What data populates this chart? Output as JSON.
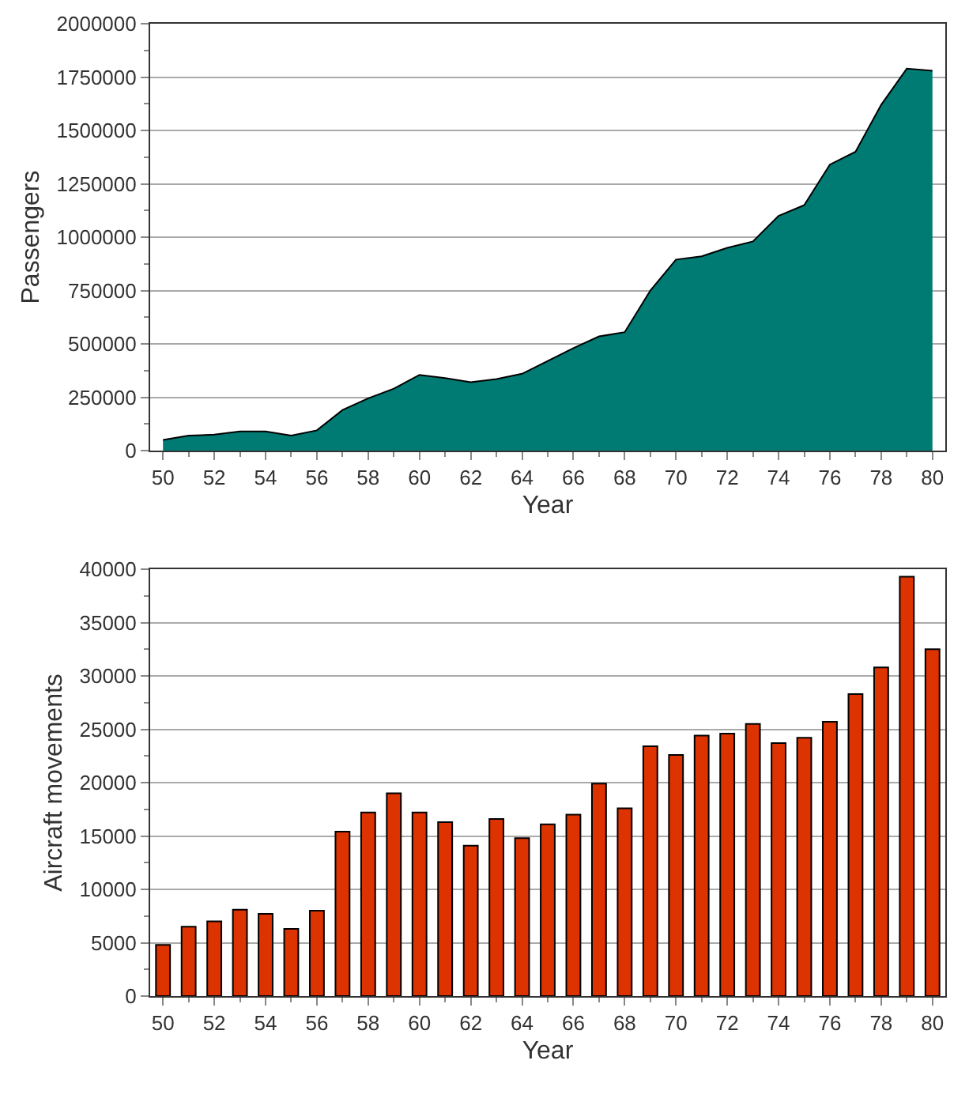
{
  "chart_data": [
    {
      "type": "area",
      "xlabel": "Year",
      "ylabel": "Passengers",
      "x": [
        50,
        51,
        52,
        53,
        54,
        55,
        56,
        57,
        58,
        59,
        60,
        61,
        62,
        63,
        64,
        65,
        66,
        67,
        68,
        69,
        70,
        71,
        72,
        73,
        74,
        75,
        76,
        77,
        78,
        79,
        80
      ],
      "series": [
        {
          "color": "#007b74",
          "values": [
            50000,
            70000,
            75000,
            90000,
            90000,
            70000,
            95000,
            190000,
            245000,
            290000,
            355000,
            340000,
            320000,
            335000,
            360000,
            420000,
            480000,
            535000,
            555000,
            750000,
            895000,
            910000,
            950000,
            980000,
            1100000,
            1150000,
            1340000,
            1400000,
            1620000,
            1790000,
            1780000
          ]
        }
      ],
      "xlim": [
        49.5,
        80.5
      ],
      "xticks": [
        50,
        {
          "value": 51,
          "label": null
        },
        52,
        {
          "value": 53,
          "label": null
        },
        54,
        {
          "value": 55,
          "label": null
        },
        56,
        {
          "value": 57,
          "label": null
        },
        58,
        {
          "value": 59,
          "label": null
        },
        60,
        {
          "value": 61,
          "label": null
        },
        62,
        {
          "value": 63,
          "label": null
        },
        64,
        {
          "value": 65,
          "label": null
        },
        66,
        {
          "value": 67,
          "label": null
        },
        68,
        {
          "value": 69,
          "label": null
        },
        70,
        {
          "value": 71,
          "label": null
        },
        72,
        {
          "value": 73,
          "label": null
        },
        74,
        {
          "value": 75,
          "label": null
        },
        76,
        {
          "value": 77,
          "label": null
        },
        78,
        {
          "value": 79,
          "label": null
        },
        80
      ],
      "ylim": [
        0,
        2000000
      ],
      "yticks": [
        0,
        {
          "value": 125000,
          "label": null
        },
        250000,
        {
          "value": 375000,
          "label": null
        },
        500000,
        {
          "value": 625000,
          "label": null
        },
        750000,
        {
          "value": 875000,
          "label": null
        },
        1000000,
        {
          "value": 1125000,
          "label": null
        },
        1250000,
        {
          "value": 1375000,
          "label": null
        },
        1500000,
        {
          "value": 1625000,
          "label": null
        },
        1750000,
        {
          "value": 1875000,
          "label": null
        },
        2000000
      ],
      "grid": "y"
    },
    {
      "type": "bar",
      "xlabel": "Year",
      "ylabel": "Aircraft movements",
      "x": [
        50,
        51,
        52,
        53,
        54,
        55,
        56,
        57,
        58,
        59,
        60,
        61,
        62,
        63,
        64,
        65,
        66,
        67,
        68,
        69,
        70,
        71,
        72,
        73,
        74,
        75,
        76,
        77,
        78,
        79,
        80
      ],
      "series": [
        {
          "color": "#dd3300",
          "values": [
            4800,
            6500,
            7000,
            8100,
            7700,
            6300,
            8000,
            15400,
            17200,
            19000,
            17200,
            16300,
            14100,
            16600,
            14800,
            16100,
            17000,
            19900,
            17600,
            23400,
            22600,
            24400,
            24600,
            25500,
            23700,
            24200,
            25700,
            28300,
            30800,
            39300,
            32500
          ]
        }
      ],
      "xlim": [
        49.5,
        80.5
      ],
      "xticks": [
        50,
        {
          "value": 51,
          "label": null
        },
        52,
        {
          "value": 53,
          "label": null
        },
        54,
        {
          "value": 55,
          "label": null
        },
        56,
        {
          "value": 57,
          "label": null
        },
        58,
        {
          "value": 59,
          "label": null
        },
        60,
        {
          "value": 61,
          "label": null
        },
        62,
        {
          "value": 63,
          "label": null
        },
        64,
        {
          "value": 65,
          "label": null
        },
        66,
        {
          "value": 67,
          "label": null
        },
        68,
        {
          "value": 69,
          "label": null
        },
        70,
        {
          "value": 71,
          "label": null
        },
        72,
        {
          "value": 73,
          "label": null
        },
        74,
        {
          "value": 75,
          "label": null
        },
        76,
        {
          "value": 77,
          "label": null
        },
        78,
        {
          "value": 79,
          "label": null
        },
        80
      ],
      "ylim": [
        0,
        40000
      ],
      "yticks": [
        0,
        {
          "value": 2500,
          "label": null
        },
        5000,
        {
          "value": 7500,
          "label": null
        },
        10000,
        {
          "value": 12500,
          "label": null
        },
        15000,
        {
          "value": 17500,
          "label": null
        },
        20000,
        {
          "value": 22500,
          "label": null
        },
        25000,
        {
          "value": 27500,
          "label": null
        },
        30000,
        {
          "value": 32500,
          "label": null
        },
        35000,
        {
          "value": 37500,
          "label": null
        },
        40000
      ],
      "grid": "y"
    }
  ]
}
